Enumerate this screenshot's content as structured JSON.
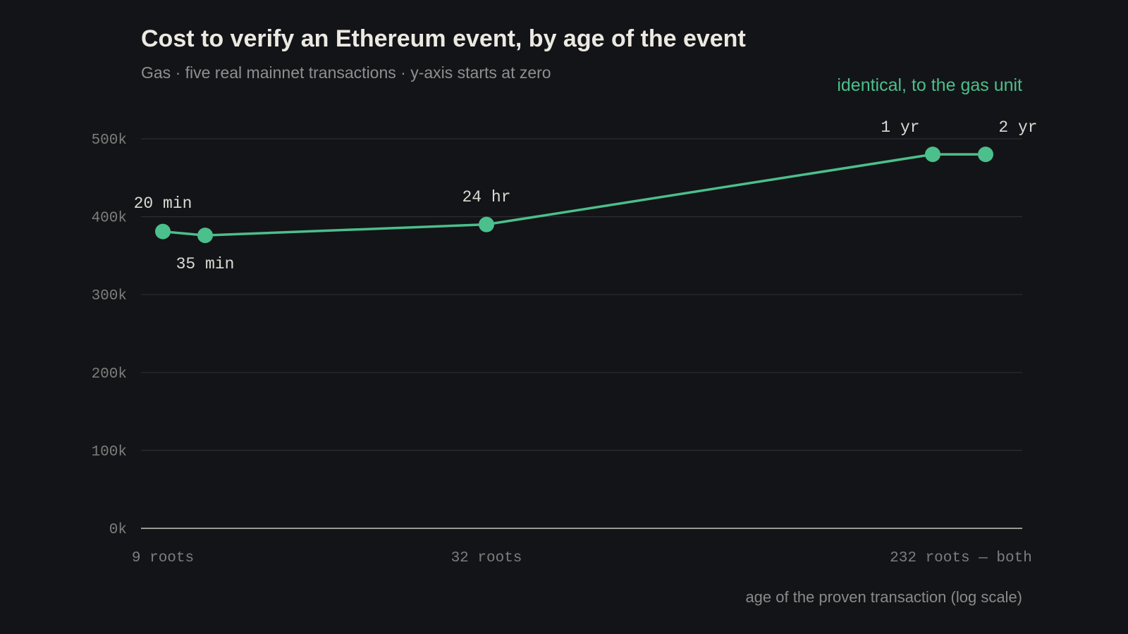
{
  "colors": {
    "background": "#131417",
    "series": "#4bbf8c",
    "gridline": "#2c2d31",
    "baseline": "#9a9a96",
    "title": "#ece9e2",
    "muted": "#8a8a8a",
    "point_label": "#dcdad4"
  },
  "chart_data": {
    "type": "line",
    "title": "Cost to verify an Ethereum event, by age of the event",
    "subtitle": "Gas · five real mainnet transactions · y-axis starts at zero",
    "xlabel": "age of the proven transaction (log scale)",
    "ylabel": "",
    "x_scale": "log",
    "ylim": [
      0,
      500000
    ],
    "y_ticks": [
      0,
      100000,
      200000,
      300000,
      400000,
      500000
    ],
    "y_tick_labels": [
      "0k",
      "100k",
      "200k",
      "300k",
      "400k",
      "500k"
    ],
    "x_tick_labels": [
      "9 roots",
      "32 roots",
      "232 roots — both"
    ],
    "grid": true,
    "annotation": "identical, to the gas unit",
    "series": [
      {
        "points": [
          {
            "age": "20 min",
            "gas": 381000
          },
          {
            "age": "35 min",
            "gas": 376000
          },
          {
            "age": "24 hr",
            "gas": 390000
          },
          {
            "age": "1 yr",
            "gas": 480000
          },
          {
            "age": "2 yr",
            "gas": 480000
          }
        ]
      }
    ]
  }
}
